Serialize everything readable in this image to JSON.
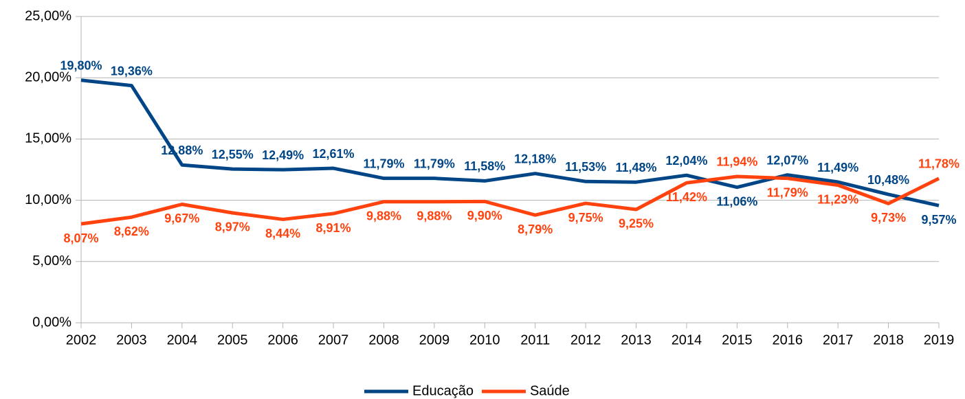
{
  "chart_data": {
    "type": "line",
    "x": [
      2002,
      2003,
      2004,
      2005,
      2006,
      2007,
      2008,
      2009,
      2010,
      2011,
      2012,
      2013,
      2014,
      2015,
      2016,
      2017,
      2018,
      2019
    ],
    "xlim": [
      2002,
      2019
    ],
    "xticks": [
      2002,
      2003,
      2004,
      2005,
      2006,
      2007,
      2008,
      2009,
      2010,
      2011,
      2012,
      2013,
      2014,
      2015,
      2016,
      2017,
      2018,
      2019
    ],
    "ylim": [
      0,
      25
    ],
    "yticks": [
      {
        "value": 0,
        "label": "0,00%"
      },
      {
        "value": 5,
        "label": "5,00%"
      },
      {
        "value": 10,
        "label": "10,00%"
      },
      {
        "value": 15,
        "label": "15,00%"
      },
      {
        "value": 20,
        "label": "20,00%"
      },
      {
        "value": 25,
        "label": "25,00%"
      }
    ],
    "grid": true,
    "legend": "bottom",
    "series": [
      {
        "name": "Educação",
        "color": "#004586",
        "values": [
          19.8,
          19.36,
          12.88,
          12.55,
          12.49,
          12.61,
          11.79,
          11.79,
          11.58,
          12.18,
          11.53,
          11.48,
          12.04,
          11.06,
          12.07,
          11.49,
          10.48,
          9.57
        ],
        "value_labels": [
          "19,80%",
          "19,36%",
          "12,88%",
          "12,55%",
          "12,49%",
          "12,61%",
          "11,79%",
          "11,79%",
          "11,58%",
          "12,18%",
          "11,53%",
          "11,48%",
          "12,04%",
          "11,06%",
          "12,07%",
          "11,49%",
          "10,48%",
          "9,57%"
        ]
      },
      {
        "name": "Saúde",
        "color": "#ff420e",
        "values": [
          8.07,
          8.62,
          9.67,
          8.97,
          8.44,
          8.91,
          9.88,
          9.88,
          9.9,
          8.79,
          9.75,
          9.25,
          11.42,
          11.94,
          11.79,
          11.23,
          9.73,
          11.78
        ],
        "value_labels": [
          "8,07%",
          "8,62%",
          "9,67%",
          "8,97%",
          "8,44%",
          "8,91%",
          "9,88%",
          "9,88%",
          "9,90%",
          "8,79%",
          "9,75%",
          "9,25%",
          "11,42%",
          "11,94%",
          "11,79%",
          "11,23%",
          "9,73%",
          "11,78%"
        ]
      }
    ]
  }
}
